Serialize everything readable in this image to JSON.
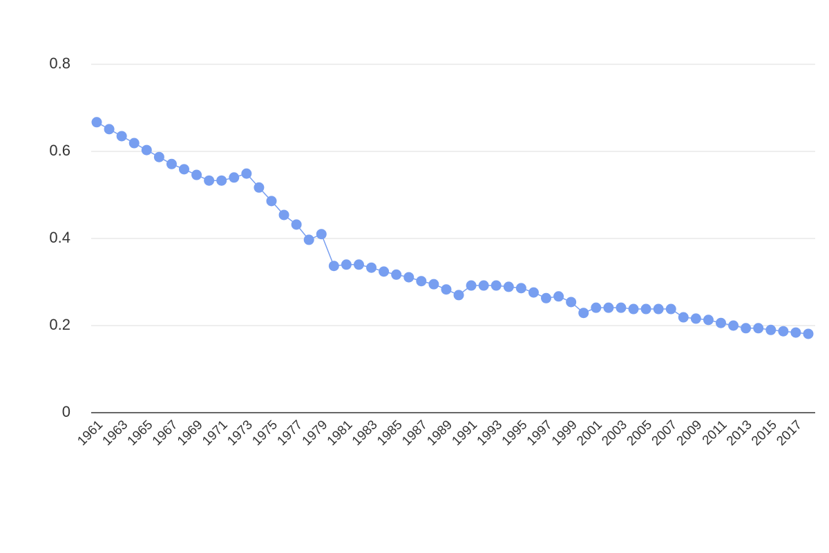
{
  "chart_data": {
    "type": "line",
    "x": [
      1961,
      1962,
      1963,
      1964,
      1965,
      1966,
      1967,
      1968,
      1969,
      1970,
      1971,
      1972,
      1973,
      1974,
      1975,
      1976,
      1977,
      1978,
      1979,
      1980,
      1981,
      1982,
      1983,
      1984,
      1985,
      1986,
      1987,
      1988,
      1989,
      1990,
      1991,
      1992,
      1993,
      1994,
      1995,
      1996,
      1997,
      1998,
      1999,
      2000,
      2001,
      2002,
      2003,
      2004,
      2005,
      2006,
      2007,
      2008,
      2009,
      2010,
      2011,
      2012,
      2013,
      2014,
      2015,
      2016,
      2017,
      2018
    ],
    "values": [
      0.667,
      0.651,
      0.635,
      0.619,
      0.603,
      0.587,
      0.571,
      0.559,
      0.546,
      0.533,
      0.533,
      0.54,
      0.549,
      0.517,
      0.486,
      0.454,
      0.432,
      0.397,
      0.41,
      0.337,
      0.34,
      0.34,
      0.333,
      0.324,
      0.317,
      0.311,
      0.302,
      0.295,
      0.283,
      0.27,
      0.292,
      0.292,
      0.292,
      0.289,
      0.286,
      0.276,
      0.263,
      0.267,
      0.254,
      0.229,
      0.241,
      0.241,
      0.241,
      0.238,
      0.238,
      0.238,
      0.238,
      0.219,
      0.216,
      0.213,
      0.206,
      0.2,
      0.194,
      0.194,
      0.19,
      0.187,
      0.184,
      0.181
    ],
    "color": "#779ef0",
    "xlim": [
      1961,
      2018
    ],
    "xticks": [
      1961,
      1963,
      1965,
      1967,
      1969,
      1971,
      1973,
      1975,
      1977,
      1979,
      1981,
      1983,
      1985,
      1987,
      1989,
      1991,
      1993,
      1995,
      1997,
      1999,
      2001,
      2003,
      2005,
      2007,
      2009,
      2011,
      2013,
      2015,
      2017
    ],
    "ylim": [
      0,
      0.8
    ],
    "yticks": [
      0,
      0.2,
      0.4,
      0.6,
      0.8
    ],
    "grid": true
  }
}
